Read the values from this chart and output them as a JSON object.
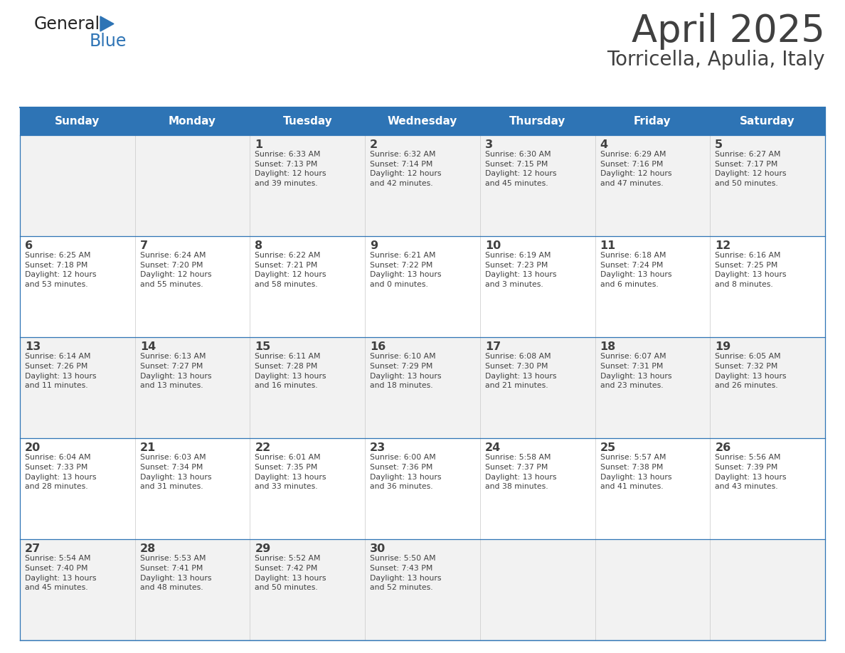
{
  "title": "April 2025",
  "subtitle": "Torricella, Apulia, Italy",
  "header_bg": "#2E74B5",
  "header_text_color": "#FFFFFF",
  "row_bg_even": "#F2F2F2",
  "row_bg_odd": "#FFFFFF",
  "border_color": "#2E74B5",
  "text_color": "#404040",
  "days_of_week": [
    "Sunday",
    "Monday",
    "Tuesday",
    "Wednesday",
    "Thursday",
    "Friday",
    "Saturday"
  ],
  "calendar_data": [
    [
      {
        "day": "",
        "info": ""
      },
      {
        "day": "",
        "info": ""
      },
      {
        "day": "1",
        "info": "Sunrise: 6:33 AM\nSunset: 7:13 PM\nDaylight: 12 hours\nand 39 minutes."
      },
      {
        "day": "2",
        "info": "Sunrise: 6:32 AM\nSunset: 7:14 PM\nDaylight: 12 hours\nand 42 minutes."
      },
      {
        "day": "3",
        "info": "Sunrise: 6:30 AM\nSunset: 7:15 PM\nDaylight: 12 hours\nand 45 minutes."
      },
      {
        "day": "4",
        "info": "Sunrise: 6:29 AM\nSunset: 7:16 PM\nDaylight: 12 hours\nand 47 minutes."
      },
      {
        "day": "5",
        "info": "Sunrise: 6:27 AM\nSunset: 7:17 PM\nDaylight: 12 hours\nand 50 minutes."
      }
    ],
    [
      {
        "day": "6",
        "info": "Sunrise: 6:25 AM\nSunset: 7:18 PM\nDaylight: 12 hours\nand 53 minutes."
      },
      {
        "day": "7",
        "info": "Sunrise: 6:24 AM\nSunset: 7:20 PM\nDaylight: 12 hours\nand 55 minutes."
      },
      {
        "day": "8",
        "info": "Sunrise: 6:22 AM\nSunset: 7:21 PM\nDaylight: 12 hours\nand 58 minutes."
      },
      {
        "day": "9",
        "info": "Sunrise: 6:21 AM\nSunset: 7:22 PM\nDaylight: 13 hours\nand 0 minutes."
      },
      {
        "day": "10",
        "info": "Sunrise: 6:19 AM\nSunset: 7:23 PM\nDaylight: 13 hours\nand 3 minutes."
      },
      {
        "day": "11",
        "info": "Sunrise: 6:18 AM\nSunset: 7:24 PM\nDaylight: 13 hours\nand 6 minutes."
      },
      {
        "day": "12",
        "info": "Sunrise: 6:16 AM\nSunset: 7:25 PM\nDaylight: 13 hours\nand 8 minutes."
      }
    ],
    [
      {
        "day": "13",
        "info": "Sunrise: 6:14 AM\nSunset: 7:26 PM\nDaylight: 13 hours\nand 11 minutes."
      },
      {
        "day": "14",
        "info": "Sunrise: 6:13 AM\nSunset: 7:27 PM\nDaylight: 13 hours\nand 13 minutes."
      },
      {
        "day": "15",
        "info": "Sunrise: 6:11 AM\nSunset: 7:28 PM\nDaylight: 13 hours\nand 16 minutes."
      },
      {
        "day": "16",
        "info": "Sunrise: 6:10 AM\nSunset: 7:29 PM\nDaylight: 13 hours\nand 18 minutes."
      },
      {
        "day": "17",
        "info": "Sunrise: 6:08 AM\nSunset: 7:30 PM\nDaylight: 13 hours\nand 21 minutes."
      },
      {
        "day": "18",
        "info": "Sunrise: 6:07 AM\nSunset: 7:31 PM\nDaylight: 13 hours\nand 23 minutes."
      },
      {
        "day": "19",
        "info": "Sunrise: 6:05 AM\nSunset: 7:32 PM\nDaylight: 13 hours\nand 26 minutes."
      }
    ],
    [
      {
        "day": "20",
        "info": "Sunrise: 6:04 AM\nSunset: 7:33 PM\nDaylight: 13 hours\nand 28 minutes."
      },
      {
        "day": "21",
        "info": "Sunrise: 6:03 AM\nSunset: 7:34 PM\nDaylight: 13 hours\nand 31 minutes."
      },
      {
        "day": "22",
        "info": "Sunrise: 6:01 AM\nSunset: 7:35 PM\nDaylight: 13 hours\nand 33 minutes."
      },
      {
        "day": "23",
        "info": "Sunrise: 6:00 AM\nSunset: 7:36 PM\nDaylight: 13 hours\nand 36 minutes."
      },
      {
        "day": "24",
        "info": "Sunrise: 5:58 AM\nSunset: 7:37 PM\nDaylight: 13 hours\nand 38 minutes."
      },
      {
        "day": "25",
        "info": "Sunrise: 5:57 AM\nSunset: 7:38 PM\nDaylight: 13 hours\nand 41 minutes."
      },
      {
        "day": "26",
        "info": "Sunrise: 5:56 AM\nSunset: 7:39 PM\nDaylight: 13 hours\nand 43 minutes."
      }
    ],
    [
      {
        "day": "27",
        "info": "Sunrise: 5:54 AM\nSunset: 7:40 PM\nDaylight: 13 hours\nand 45 minutes."
      },
      {
        "day": "28",
        "info": "Sunrise: 5:53 AM\nSunset: 7:41 PM\nDaylight: 13 hours\nand 48 minutes."
      },
      {
        "day": "29",
        "info": "Sunrise: 5:52 AM\nSunset: 7:42 PM\nDaylight: 13 hours\nand 50 minutes."
      },
      {
        "day": "30",
        "info": "Sunrise: 5:50 AM\nSunset: 7:43 PM\nDaylight: 13 hours\nand 52 minutes."
      },
      {
        "day": "",
        "info": ""
      },
      {
        "day": "",
        "info": ""
      },
      {
        "day": "",
        "info": ""
      }
    ]
  ],
  "logo_color_general": "#222222",
  "logo_color_blue": "#2E74B5",
  "fig_width": 11.88,
  "fig_height": 9.18,
  "dpi": 100
}
